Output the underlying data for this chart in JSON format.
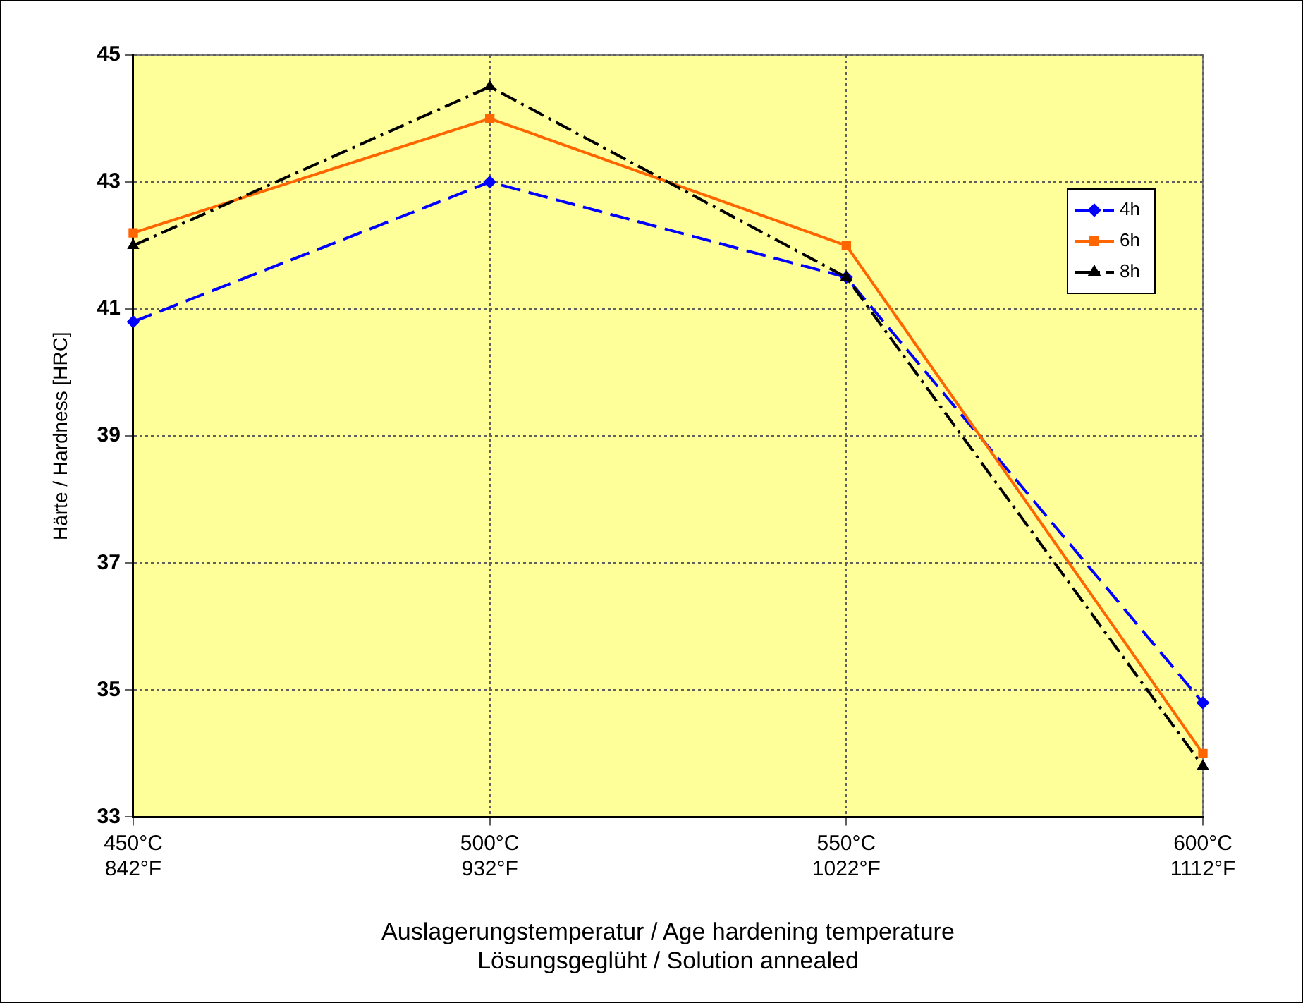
{
  "chart_data": {
    "type": "line",
    "xlabel": "Auslagerungstemperatur / Age hardening temperature\nLösungsgeglüht / Solution annealed",
    "ylabel": "Härte / Hardness [HRC]",
    "categories": [
      "450°C\n842°F",
      "500°C\n932°F",
      "550°C\n1022°F",
      "600°C\n1112°F"
    ],
    "series": [
      {
        "name": "4h",
        "color": "#0000ff",
        "values": [
          40.8,
          43.0,
          41.5,
          34.8
        ],
        "marker": "diamond",
        "line_style": "dashed"
      },
      {
        "name": "6h",
        "color": "#ff6600",
        "values": [
          42.2,
          44.0,
          42.0,
          34.0
        ],
        "marker": "square",
        "line_style": "solid"
      },
      {
        "name": "8h",
        "color": "#000000",
        "values": [
          42.0,
          44.5,
          41.5,
          33.8
        ],
        "marker": "triangle",
        "line_style": "dashdot"
      }
    ],
    "ylim": [
      33,
      45
    ],
    "yticks": [
      33,
      35,
      37,
      39,
      41,
      43,
      45
    ],
    "grid": true,
    "legend": "top right"
  }
}
